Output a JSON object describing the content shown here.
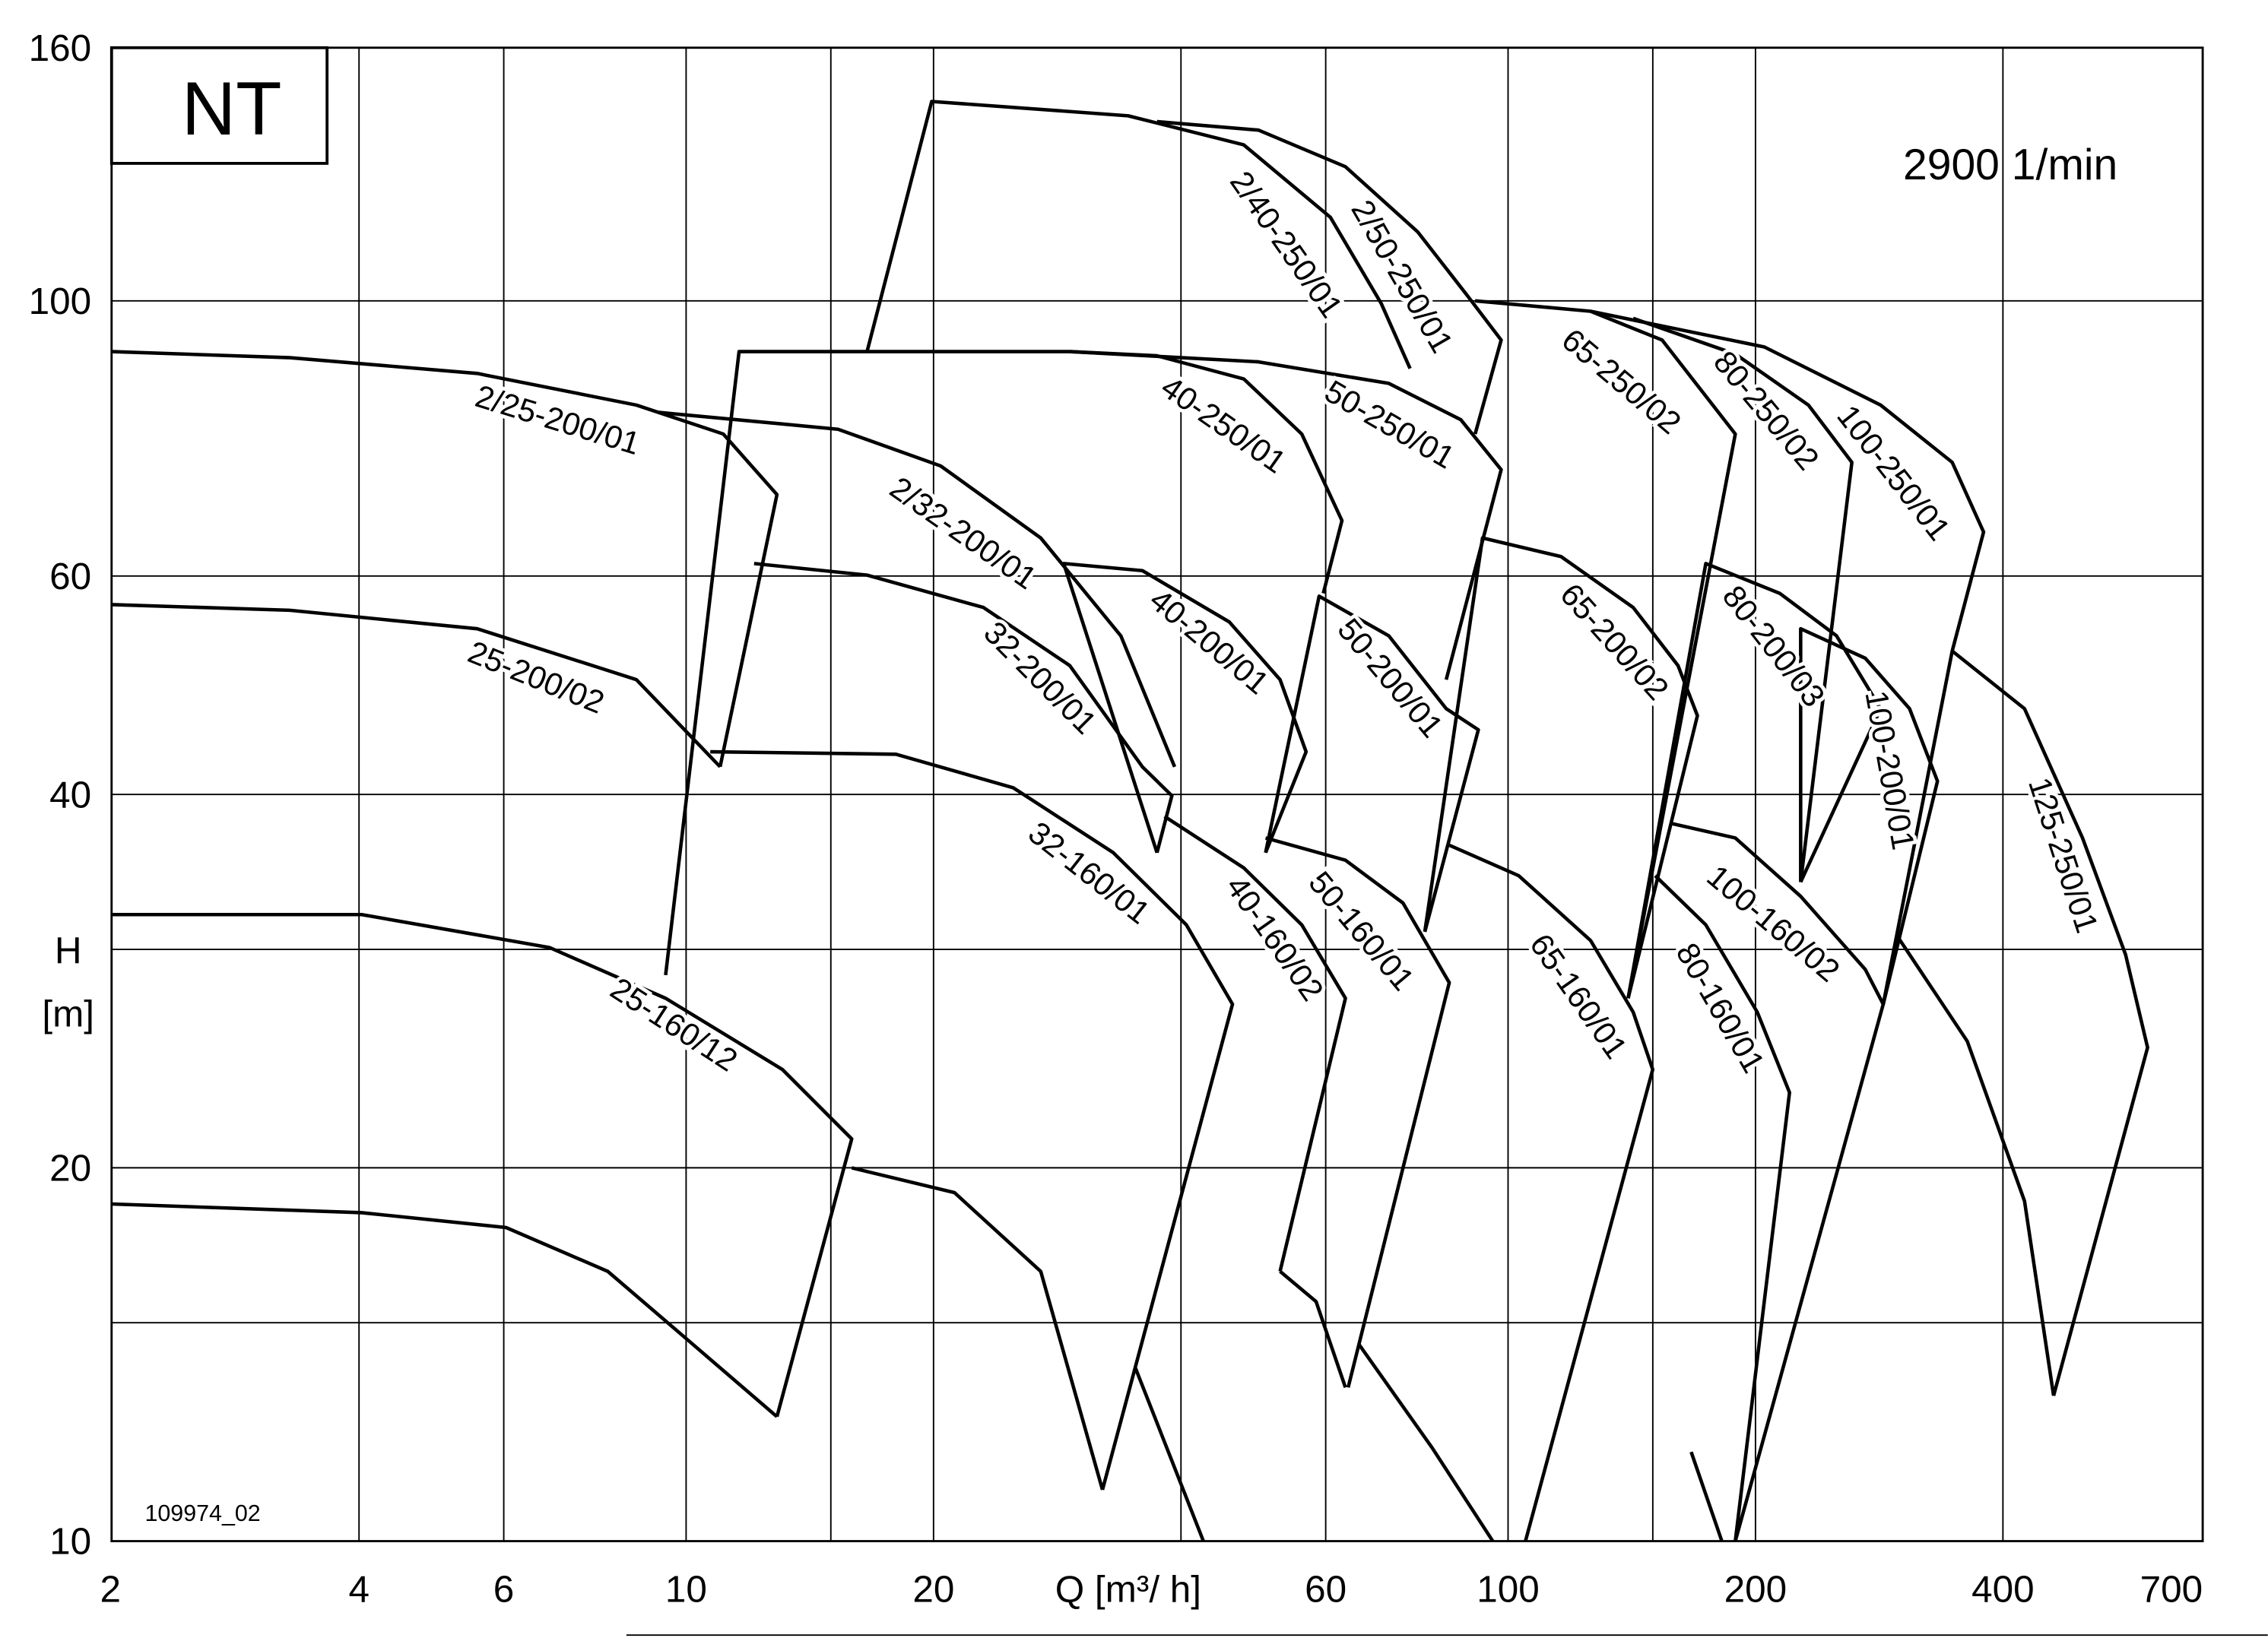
{
  "chart_data": {
    "type": "line",
    "title": "NT",
    "subtitle": "2900 1/min",
    "xlabel": "Q [m³/ h]",
    "ylabel": [
      "H",
      "[m]"
    ],
    "annotation": "109974_02",
    "xscale": "log",
    "yscale": "log",
    "grid": true,
    "color": "#000000",
    "xlim": [
      2,
      700
    ],
    "ylim": [
      10,
      160
    ],
    "xticks": [
      2,
      4,
      6,
      10,
      20,
      60,
      100,
      200,
      400,
      700
    ],
    "xgrid": [
      15,
      40,
      150
    ],
    "yticks": [
      10,
      20,
      40,
      60,
      100,
      160
    ],
    "ygrid": [
      15,
      30
    ],
    "series": [
      {
        "name": "2/25-200/01",
        "x": [
          2,
          3.29,
          5.57,
          8.7,
          11.1,
          12.9,
          11.0
        ],
        "y": [
          91.0,
          90.0,
          87.4,
          82.4,
          78.1,
          69.8,
          42.1
        ]
      },
      {
        "name": "25-200/02",
        "x": [
          2,
          3.29,
          5.57,
          8.7,
          11.0
        ],
        "y": [
          56.9,
          56.3,
          54.4,
          49.5,
          42.1
        ]
      },
      {
        "name": "25-160/12",
        "x": [
          2,
          4.03,
          6.82,
          9.44,
          13.1,
          15.9,
          12.9
        ],
        "y": [
          32.0,
          32.0,
          30.1,
          27.4,
          24.0,
          21.1,
          12.6
        ]
      },
      {
        "x": [
          2,
          4.03,
          6.04,
          8.03,
          10.2,
          12.9
        ],
        "y": [
          18.7,
          18.4,
          17.9,
          16.5,
          14.4,
          12.6
        ]
      },
      {
        "name": "2/32-200/01",
        "x": [
          9.25,
          15.3,
          20.4,
          27.0,
          33.8,
          39.3
        ],
        "y": [
          81.3,
          78.8,
          73.6,
          64.4,
          53.7,
          42.1
        ]
      },
      {
        "name": "32-200/01",
        "x": [
          12.1,
          16.6,
          23.0,
          29.3,
          35.9,
          39.0,
          37.4
        ],
        "y": [
          61.4,
          60.1,
          56.6,
          50.8,
          42.1,
          39.9,
          35.9
        ]
      },
      {
        "name": "32-160/01",
        "x": [
          10.7,
          18.0,
          25.0,
          33.1,
          40.6,
          46.2,
          32.1
        ],
        "y": [
          43.3,
          43.1,
          40.5,
          35.9,
          31.4,
          27.1,
          11.0
        ]
      },
      {
        "x": [
          9.44,
          11.6,
          29.3
        ],
        "y": [
          28.6,
          91.0,
          91.0
        ]
      },
      {
        "x": [
          15.9,
          21.2,
          27.0,
          32.1
        ],
        "y": [
          20.0,
          19.1,
          16.5,
          11.0
        ]
      },
      {
        "name": "2/40-250/01",
        "x": [
          16.6,
          19.9,
          34.5,
          47.7,
          60.8,
          70.1,
          76.0
        ],
        "y": [
          91.0,
          144.8,
          141,
          133.6,
          116.8,
          99.5,
          88.2
        ]
      },
      {
        "name": "2/50-250/01",
        "x": [
          37.4,
          49.7,
          63.4,
          77.6,
          89.4,
          98.1,
          91.2
        ],
        "y": [
          139.5,
          137.3,
          128.3,
          113.7,
          100.8,
          93.0,
          78.1
        ]
      },
      {
        "name": "40-250/01",
        "x": [
          29.3,
          37.4,
          47.7,
          56.1,
          62.8,
          59.6
        ],
        "y": [
          91.0,
          90.3,
          86.5,
          78.1,
          66.5,
          58.1
        ]
      },
      {
        "name": "50-250/01",
        "x": [
          29.3,
          49.7,
          71.6,
          87.6,
          98.1,
          84.1
        ],
        "y": [
          91.0,
          89.3,
          85.8,
          80.2,
          73.1,
          49.5
        ]
      },
      {
        "name": "65-250/02",
        "x": [
          91.2,
          126,
          154,
          189,
          140
        ],
        "y": [
          100,
          98.1,
          93.0,
          78.1,
          27.4
        ]
      },
      {
        "name": "80-250/02",
        "x": [
          142,
          189,
          232,
          262,
          227
        ],
        "y": [
          96.8,
          90.6,
          82.4,
          74.1,
          34.0
        ]
      },
      {
        "name": "100-250/01",
        "x": [
          126,
          205,
          284,
          347,
          379,
          347,
          286
        ],
        "y": [
          98.1,
          91.8,
          82.4,
          74.1,
          65.1,
          52.2,
          27.1
        ]
      },
      {
        "name": "40-200/01",
        "x": [
          37.4,
          28.8,
          35.9,
          45.8,
          52.8,
          56.8,
          50.7
        ],
        "y": [
          35.9,
          61.4,
          60.6,
          55.1,
          49.5,
          43.3,
          35.9
        ]
      },
      {
        "name": "50-200/01",
        "x": [
          50.7,
          58.9,
          71.6,
          84.1,
          92.0,
          79.2
        ],
        "y": [
          35.9,
          57.8,
          53.7,
          46.9,
          45.1,
          31.0
        ]
      },
      {
        "name": "65-200/02",
        "x": [
          79.2,
          93.1,
          116,
          142,
          161,
          170,
          140
        ],
        "y": [
          31.0,
          64.4,
          62.2,
          56.6,
          50.8,
          46.3,
          27.4
        ]
      },
      {
        "name": "80-200/03",
        "x": [
          140,
          174,
          214,
          251,
          284,
          227
        ],
        "y": [
          27.4,
          61.4,
          58.1,
          53.7,
          46.9,
          34.0
        ]
      },
      {
        "name": "100-200/01",
        "x": [
          227,
          227,
          272,
          308,
          333,
          286
        ],
        "y": [
          34.0,
          54.4,
          51.5,
          46.9,
          41.0,
          27.1
        ]
      },
      {
        "name": "125-250/01",
        "x": [
          347,
          425,
          500,
          564,
          600,
          461
        ],
        "y": [
          52.2,
          46.9,
          36.9,
          29.7,
          25.0,
          13.1
        ]
      },
      {
        "x": [
          298,
          362,
          425,
          461
        ],
        "y": [
          30.7,
          25.3,
          18.8,
          13.1
        ]
      },
      {
        "name": "40-160/02",
        "x": [
          38.2,
          47.7,
          56.1,
          63.4,
          52.8
        ],
        "y": [
          38.4,
          34.9,
          31.4,
          27.4,
          16.5
        ]
      },
      {
        "x": [
          52.8,
          58.4,
          63.4
        ],
        "y": [
          16.5,
          15.6,
          13.3
        ]
      },
      {
        "x": [
          35.2,
          42.6
        ],
        "y": [
          13.8,
          10
        ]
      },
      {
        "name": "50-160/01",
        "x": [
          50.7,
          63.4,
          74.5,
          84.8,
          63.9
        ],
        "y": [
          36.9,
          35.4,
          32.7,
          28.2,
          13.3
        ]
      },
      {
        "x": [
          65.9,
          80.8,
          95.8
        ],
        "y": [
          14.4,
          11.9,
          10
        ]
      },
      {
        "name": "65-160/01",
        "x": [
          84.8,
          103,
          126,
          142,
          150,
          105
        ],
        "y": [
          36.4,
          34.4,
          30.5,
          26.7,
          24.0,
          10
        ]
      },
      {
        "name": "80-160/01",
        "x": [
          151,
          174,
          201,
          220,
          189
        ],
        "y": [
          34.4,
          31.4,
          26.7,
          23.0,
          10
        ]
      },
      {
        "x": [
          167,
          182
        ],
        "y": [
          11.8,
          10
        ]
      },
      {
        "name": "100-160/02",
        "x": [
          158,
          189,
          227,
          272,
          286,
          189
        ],
        "y": [
          37.9,
          36.9,
          33.1,
          28.9,
          27.1,
          10
        ]
      }
    ]
  }
}
